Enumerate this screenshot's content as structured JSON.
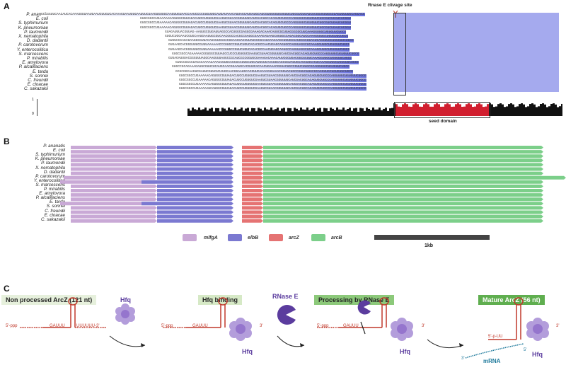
{
  "panels": {
    "a": "A",
    "b": "B",
    "c": "C"
  },
  "panel_a": {
    "cleavage_label": "Rnase E clivage site",
    "seed_label": "seed domain",
    "axis_top": "1",
    "axis_bottom": "0",
    "species": [
      "P. ananatis",
      "E. coli",
      "S. typhimurium",
      "K. pneumoniae",
      "P. laumondii",
      "X. nematophila",
      "D. dadantii",
      "P. carotovorum",
      "Y. enterocolitica",
      "S. marcescens",
      "P. mirabilis",
      "E. amylovora",
      "P. alcalifaciens",
      "E. tarda",
      "S. sonnei",
      "C. freundii",
      "E. cloacae",
      "C. sakazakii"
    ],
    "sequences": [
      "GCCGGUUCAACAUCACAAAUUUUAAUGAAUCUUGUCACAAAGUAAUUUGAAUUUCUAAGUGUUGCAAGUUGUAACCAAUCCCCGUGUUGCAUGAUAAACAUUAGCAUGAUGCAGCGUUUGGUGUGUUCUGCGUCUGAUCUCGGUGUUGGCGAGUGUUUGCAGCACC",
      "GUGCGGCCUGAAAAACAGUGGCGUUAGACUUCCUGUGUCGAAGUCGUAACGGUUUUCAUCGACUGCACAGUGCUGCCCAGGUUGCUGUGUUCUGCGUCUGAUCUCGGU",
      "GUGCGGCCUGAAAAACAGUGGCGUUAGACUUCCUGUGUCGAAGUCGUAACGGUUUUCAUCGACUGCACAGUGCUGCCCAGGUUGCUGUGUUCUGCGUCUGAUCUCGGU",
      "GUGCGGCCUGAAAAACAGUGGCGUUAGACUUCCUGUGUCGAAGUCGUAACGGUUUUCAUCGACUGCACAGUGCUGCCCAGGUUGCUGUGUUCUGCGUCUGAUCUCGGU",
      "GUAGAUUUACGUUAG-AAUUGCGUGAUUAGGCCACUGGCGAGGCGAAAGACAAACAUUCGCUGACGGCGCUUCAAAGGUUGCUGUGUUCUGCG",
      "GUGUCUGGAAUCGUGCAAUGAAUUGCGUCAACGGCCACGCCGAGGCGAAAGAUAAGCUGUGCCAGACGGCAUCCAAAGGUUGCUGUGUUCUGCG",
      "GUGUCCCAGAGAAGGCGUUACAGCUUCGUACGGAACGACCUUAGCGCGAAUAAACAAGCUGUGCGAUGCGCUGACUCAGGUUGCUGUGUUCUGCG",
      "GUGAAGCACGGGUUUCGUUUAAAAAACCCUUGCCGUUCUGUCACACGCCAACUGAGCAGUGCCAGUUAGGCUCAAAGGUUGCUGUGUUCUGCG",
      "GUGAAGCACGGGUUUCGUUUAAAAAACCCUUGCCGUUCUGUCACACGCCAACUGAGCAGUGCCAGUUAGGCUCAAAGGUUGCUGUGUUCUGCG",
      "GUGCGGCCAGAAAAACGGUGGCGUUAGCCUCCCUGUGUCGAAGUCGUAACGGUUUUCAUCGACUGCACAGUGCUGCCCAGGUUGCUGUGUUCUGCG",
      "GUUAGAUUUACGGGUUUAGGCAAGUUUAUGCCGCAUCGCCGGUGCGAAAGACAAACAUUCGCUGACGGCGCUUCAAAGGUUGCUGUGUUCUGCG",
      "GUGCCGCCCUACCCAAAACAAACCGUGCCGCGCCUUGCUGCAUGCUCAACUGCAGCGGUAGUGCAGCUUGACUCAAAGGUUGCUGUGUUCUGCG",
      "GUGCCGCAGAAAGAUUCGUUCUCAUGCAACGGAAUGCACGUUCACAACUGAAACGGUACUGCCGUUCUUGCGCAGGUUGCUGUGUUCUGCG",
      "GCGCGGCAAGUCGAUUCGUUCUCAUGCAACGGAAUGCACGUUCACAACUGAAACGGUACUGCCGUUCUUGCGCAGGUUGCUGUGUUCUGCG",
      "GUGCGGCCUGAAAAACAGUGGCGUUAGACUUCCUGUGUCGAAGUCGUAACGGUUUUCAUCGACUGCACAGUGCUGCCCAGGUUGCUGUGUUCUGCG",
      "GUGCGGCCUGAAAAACAGUGGCGUUAGACUUCCUGUGUCGAAGUCGUAACGGUUUUCAUCGACUGCACAGUGCUGCCCAGGUUGCUGUGUUCUGCG",
      "GUGCGGCCUGAAAAACAGUGGCGUUAGACUUCCUGUGUCGAAGUCGUAACGGUUUUCAUCGACUGCACAGUGCUGCCCAGGUUGCUGUGUUCUGCG",
      "GUGCGGCCUGAAAAAUCAUGGCGUUAGACUUCCUGUGUCGAAGUCGUAACGGUUUUCAUCGACUGCACAGUGCUGCCCAGGUUGCUGUGUUCUGCG"
    ]
  },
  "panel_b": {
    "species": [
      "P. ananatis",
      "E. coli",
      "S. typhimurium",
      "K. pneumoniae",
      "P. laumondii",
      "X. nematophila",
      "D. dadantii",
      "P. carotovorum",
      "Y. enterocolitica",
      "S. marcescens",
      "P. mirabilis",
      "E. amylovora",
      "P. alcalifaciens",
      "E. tarda",
      "S. sonnei",
      "C. freundii",
      "E. cloacae",
      "C. sakazakii"
    ],
    "legend": [
      {
        "label": "mlfgA",
        "color": "#c9a9d6"
      },
      {
        "label": "elbB",
        "color": "#7b79d1"
      },
      {
        "label": "arcZ",
        "color": "#e57373"
      },
      {
        "label": "arcB",
        "color": "#7ccf8a"
      }
    ],
    "scale_label": "1kb"
  },
  "panel_c": {
    "stage1": "Non processed ArcZ (121 nt)",
    "stage2": "Hfq binding",
    "stage3": "Processing by RNase E",
    "stage4": "Mature ArcZ (56 nt)",
    "hfq": "Hfq",
    "rnase": "RNase E",
    "mrna": "mRNA",
    "five_ppp": "5'-ppp",
    "gauuu": "GAUUU",
    "uuuuuu3": "UUUUUU-3'",
    "three": "3'",
    "five_p_uu": "5'-p-UU",
    "five": "5'"
  }
}
